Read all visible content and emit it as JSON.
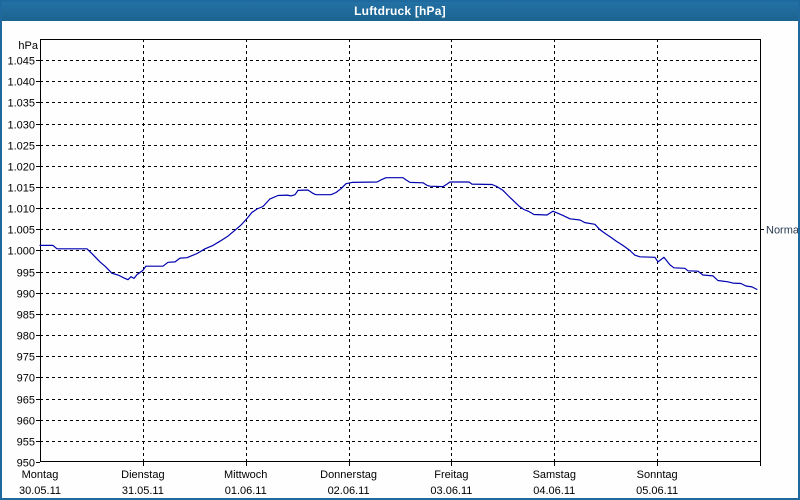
{
  "window": {
    "title": "Luftdruck [hPa]"
  },
  "colors": {
    "titlebar_bg": "#1e6a9e",
    "window_border": "#1e6a9e",
    "content_bg": "#fdfefd",
    "axis": "#000000",
    "grid": "#000000",
    "line": "#0000b0",
    "label_text": "#000000",
    "normal_text": "#2a3a50"
  },
  "chart_data": {
    "type": "line",
    "title": "Luftdruck [hPa]",
    "y_unit_label": "hPa",
    "ylim": [
      950,
      1050
    ],
    "grid": true,
    "legend_position": "none",
    "yticks": [
      {
        "value": 1045,
        "label": "1.045"
      },
      {
        "value": 1040,
        "label": "1.040"
      },
      {
        "value": 1035,
        "label": "1.035"
      },
      {
        "value": 1030,
        "label": "1.030"
      },
      {
        "value": 1025,
        "label": "1.025"
      },
      {
        "value": 1020,
        "label": "1.020"
      },
      {
        "value": 1015,
        "label": "1.015"
      },
      {
        "value": 1010,
        "label": "1.010"
      },
      {
        "value": 1005,
        "label": "1.005"
      },
      {
        "value": 1000,
        "label": "1.000"
      },
      {
        "value": 995,
        "label": "995"
      },
      {
        "value": 990,
        "label": "990"
      },
      {
        "value": 985,
        "label": "985"
      },
      {
        "value": 980,
        "label": "980"
      },
      {
        "value": 975,
        "label": "975"
      },
      {
        "value": 970,
        "label": "970"
      },
      {
        "value": 965,
        "label": "965"
      },
      {
        "value": 960,
        "label": "960"
      },
      {
        "value": 955,
        "label": "955"
      },
      {
        "value": 950,
        "label": "950"
      }
    ],
    "days": [
      {
        "name": "Montag",
        "date": "30.05.11"
      },
      {
        "name": "Dienstag",
        "date": "31.05.11"
      },
      {
        "name": "Mittwoch",
        "date": "01.06.11"
      },
      {
        "name": "Donnerstag",
        "date": "02.06.11"
      },
      {
        "name": "Freitag",
        "date": "03.06.11"
      },
      {
        "name": "Samstag",
        "date": "04.06.11"
      },
      {
        "name": "Sonntag",
        "date": "05.06.11"
      }
    ],
    "annotations": [
      {
        "label": "Normal",
        "value": 1005,
        "side": "right"
      }
    ],
    "series": [
      {
        "name": "Luftdruck",
        "unit": "hPa",
        "x_unit": "days_from_30.05.11",
        "points": [
          [
            0.0,
            1001.2
          ],
          [
            0.126,
            1001.2
          ],
          [
            0.165,
            1000.4
          ],
          [
            0.457,
            1000.4
          ],
          [
            0.515,
            999.0
          ],
          [
            0.583,
            997.3
          ],
          [
            0.632,
            996.3
          ],
          [
            0.7,
            994.6
          ],
          [
            0.758,
            994.2
          ],
          [
            0.826,
            993.4
          ],
          [
            0.856,
            993.1
          ],
          [
            0.885,
            993.8
          ],
          [
            0.914,
            993.4
          ],
          [
            0.943,
            994.3
          ],
          [
            1.0,
            995.3
          ],
          [
            1.03,
            996.3
          ],
          [
            1.196,
            996.3
          ],
          [
            1.244,
            997.2
          ],
          [
            1.313,
            997.3
          ],
          [
            1.361,
            998.2
          ],
          [
            1.429,
            998.3
          ],
          [
            1.527,
            999.3
          ],
          [
            1.604,
            1000.4
          ],
          [
            1.682,
            1001.2
          ],
          [
            1.75,
            1002.2
          ],
          [
            1.828,
            1003.4
          ],
          [
            1.896,
            1004.8
          ],
          [
            1.954,
            1006.0
          ],
          [
            2.013,
            1007.6
          ],
          [
            2.061,
            1009.0
          ],
          [
            2.11,
            1009.8
          ],
          [
            2.168,
            1010.4
          ],
          [
            2.236,
            1012.2
          ],
          [
            2.314,
            1013.0
          ],
          [
            2.402,
            1013.1
          ],
          [
            2.44,
            1012.9
          ],
          [
            2.479,
            1013.2
          ],
          [
            2.508,
            1014.2
          ],
          [
            2.605,
            1014.3
          ],
          [
            2.654,
            1013.5
          ],
          [
            2.683,
            1013.2
          ],
          [
            2.829,
            1013.2
          ],
          [
            2.878,
            1013.7
          ],
          [
            2.926,
            1014.6
          ],
          [
            2.975,
            1015.8
          ],
          [
            3.033,
            1016.1
          ],
          [
            3.276,
            1016.2
          ],
          [
            3.325,
            1016.8
          ],
          [
            3.364,
            1017.2
          ],
          [
            3.529,
            1017.2
          ],
          [
            3.558,
            1016.7
          ],
          [
            3.597,
            1016.1
          ],
          [
            3.724,
            1016.0
          ],
          [
            3.763,
            1015.4
          ],
          [
            3.792,
            1015.2
          ],
          [
            3.918,
            1015.1
          ],
          [
            3.957,
            1015.7
          ],
          [
            3.986,
            1016.2
          ],
          [
            4.171,
            1016.2
          ],
          [
            4.2,
            1015.7
          ],
          [
            4.394,
            1015.6
          ],
          [
            4.443,
            1015.1
          ],
          [
            4.501,
            1014.2
          ],
          [
            4.55,
            1013.0
          ],
          [
            4.598,
            1011.9
          ],
          [
            4.657,
            1010.5
          ],
          [
            4.705,
            1009.7
          ],
          [
            4.754,
            1009.2
          ],
          [
            4.803,
            1008.5
          ],
          [
            4.929,
            1008.4
          ],
          [
            4.987,
            1009.3
          ],
          [
            5.036,
            1008.8
          ],
          [
            5.084,
            1008.3
          ],
          [
            5.152,
            1007.5
          ],
          [
            5.25,
            1007.2
          ],
          [
            5.298,
            1006.6
          ],
          [
            5.395,
            1006.2
          ],
          [
            5.444,
            1004.9
          ],
          [
            5.502,
            1003.9
          ],
          [
            5.551,
            1003.1
          ],
          [
            5.609,
            1002.1
          ],
          [
            5.667,
            1001.2
          ],
          [
            5.735,
            1000.0
          ],
          [
            5.784,
            998.9
          ],
          [
            5.833,
            998.5
          ],
          [
            5.979,
            998.4
          ],
          [
            6.008,
            997.3
          ],
          [
            6.066,
            998.4
          ],
          [
            6.125,
            996.6
          ],
          [
            6.163,
            995.9
          ],
          [
            6.27,
            995.8
          ],
          [
            6.3,
            995.2
          ],
          [
            6.397,
            995.1
          ],
          [
            6.445,
            994.2
          ],
          [
            6.543,
            994.0
          ],
          [
            6.591,
            992.9
          ],
          [
            6.688,
            992.6
          ],
          [
            6.737,
            992.3
          ],
          [
            6.815,
            992.2
          ],
          [
            6.863,
            991.6
          ],
          [
            6.921,
            991.4
          ],
          [
            6.97,
            990.8
          ]
        ]
      }
    ]
  }
}
